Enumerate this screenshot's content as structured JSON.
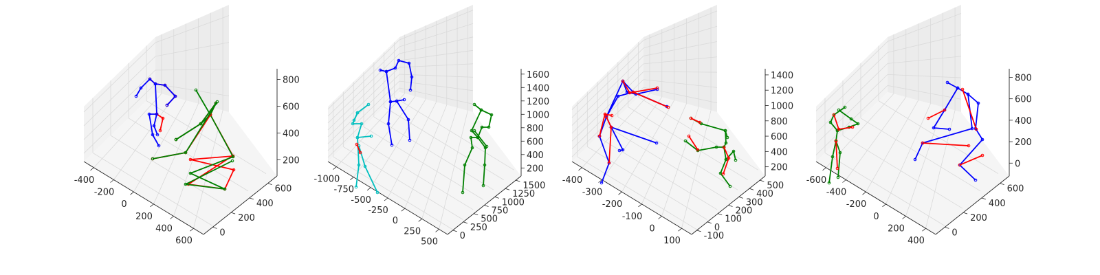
{
  "chart_data": [
    {
      "type": "3d-line",
      "title": "",
      "x_ticks": [
        "-400",
        "-200",
        "0",
        "200",
        "400",
        "600"
      ],
      "y_ticks": [
        "0",
        "200",
        "400",
        "600"
      ],
      "z_ticks": [
        "200",
        "400",
        "600",
        "800"
      ],
      "grid": true,
      "series": [
        {
          "color": "#ff0000",
          "role": "skeleton-1-overlay"
        },
        {
          "color": "#0000ff",
          "role": "skeleton-1"
        },
        {
          "color": "#ff0000",
          "role": "skeleton-2-overlay"
        },
        {
          "color": "#008000",
          "role": "skeleton-2"
        }
      ]
    },
    {
      "type": "3d-line",
      "title": "",
      "x_ticks": [
        "-1000",
        "-750",
        "-500",
        "-250",
        "0",
        "250",
        "500"
      ],
      "y_ticks": [
        "0",
        "250",
        "500",
        "750",
        "1000",
        "1250",
        "1500"
      ],
      "z_ticks": [
        "200",
        "400",
        "600",
        "800",
        "1000",
        "1200",
        "1400",
        "1600"
      ],
      "grid": true,
      "series": [
        {
          "color": "#0000ff",
          "role": "skeleton-1"
        },
        {
          "color": "#00bfbf",
          "role": "skeleton-2"
        },
        {
          "color": "#008000",
          "role": "skeleton-3"
        },
        {
          "color": "#ff0000",
          "role": "overlay"
        }
      ]
    },
    {
      "type": "3d-line",
      "title": "",
      "x_ticks": [
        "-400",
        "-300",
        "-200",
        "-100",
        "0",
        "100"
      ],
      "y_ticks": [
        "-100",
        "0",
        "100",
        "200",
        "300",
        "400",
        "500"
      ],
      "z_ticks": [
        "200",
        "400",
        "600",
        "800",
        "1000",
        "1200",
        "1400"
      ],
      "grid": true,
      "series": [
        {
          "color": "#ff0000",
          "role": "skeleton-1-overlay"
        },
        {
          "color": "#0000ff",
          "role": "skeleton-1"
        },
        {
          "color": "#ff0000",
          "role": "skeleton-2-overlay"
        },
        {
          "color": "#008000",
          "role": "skeleton-2"
        }
      ]
    },
    {
      "type": "3d-line",
      "title": "",
      "x_ticks": [
        "-600",
        "-400",
        "-200",
        "0",
        "200",
        "400"
      ],
      "y_ticks": [
        "0",
        "200",
        "400",
        "600"
      ],
      "z_ticks": [
        "0",
        "200",
        "400",
        "600",
        "800"
      ],
      "grid": true,
      "series": [
        {
          "color": "#ff0000",
          "role": "skeleton-1-overlay"
        },
        {
          "color": "#008000",
          "role": "skeleton-1"
        },
        {
          "color": "#ff0000",
          "role": "skeleton-2-overlay"
        },
        {
          "color": "#0000ff",
          "role": "skeleton-2"
        }
      ]
    }
  ]
}
